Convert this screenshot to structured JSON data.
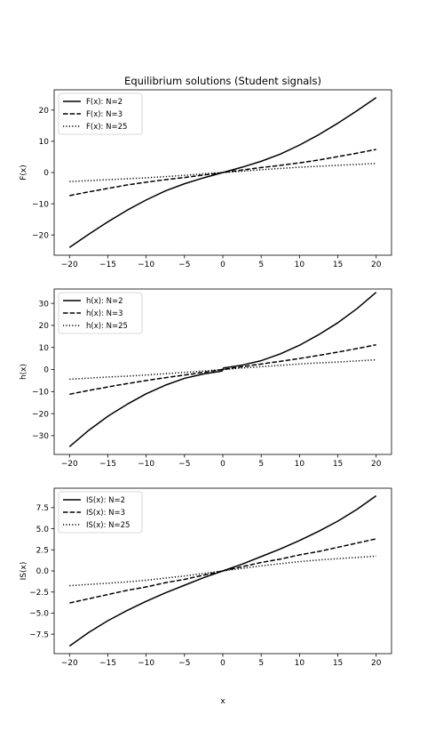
{
  "figure": {
    "title": "Equilibrium solutions (Student signals)",
    "xlabel": "x"
  },
  "chart_data": [
    {
      "type": "line",
      "title": "Equilibrium solutions (Student signals)",
      "xlabel": "",
      "ylabel": "F(x)",
      "xlim": [
        -22,
        22
      ],
      "ylim": [
        -26.5,
        26.5
      ],
      "xticks": [
        -20,
        -15,
        -10,
        -5,
        0,
        5,
        10,
        15,
        20
      ],
      "xtick_labels": [
        "−20",
        "−15",
        "−10",
        "−5",
        "0",
        "5",
        "10",
        "15",
        "20"
      ],
      "yticks": [
        -20,
        -10,
        0,
        10,
        20
      ],
      "ytick_labels": [
        "−20",
        "−10",
        "0",
        "10",
        "20"
      ],
      "legend_position": "upper-left",
      "grid": false,
      "x": [
        -20,
        -17.5,
        -15,
        -12.5,
        -10,
        -7.5,
        -5,
        -2.5,
        0,
        2.5,
        5,
        7.5,
        10,
        12.5,
        15,
        17.5,
        20
      ],
      "series": [
        {
          "name": "F(x): N=2",
          "linestyle": "solid",
          "y": [
            -24,
            -19.8,
            -15.8,
            -12.1,
            -8.8,
            -5.9,
            -3.6,
            -1.7,
            0,
            1.7,
            3.6,
            5.9,
            8.8,
            12.1,
            15.8,
            19.8,
            24
          ]
        },
        {
          "name": "F(x): N=3",
          "linestyle": "dashed",
          "y": [
            -7.4,
            -6.2,
            -5.1,
            -4.0,
            -3.1,
            -2.3,
            -1.6,
            -0.8,
            0,
            0.8,
            1.6,
            2.3,
            3.1,
            4.0,
            5.1,
            6.2,
            7.4
          ]
        },
        {
          "name": "F(x): N=25",
          "linestyle": "dotted",
          "y": [
            -2.9,
            -2.6,
            -2.3,
            -2.0,
            -1.7,
            -1.3,
            -0.9,
            -0.4,
            0,
            0.4,
            0.9,
            1.3,
            1.7,
            2.0,
            2.3,
            2.6,
            2.9
          ]
        }
      ]
    },
    {
      "type": "line",
      "title": "",
      "xlabel": "",
      "ylabel": "h(x)",
      "xlim": [
        -22,
        22
      ],
      "ylim": [
        -38.5,
        36.5
      ],
      "xticks": [
        -20,
        -15,
        -10,
        -5,
        0,
        5,
        10,
        15,
        20
      ],
      "xtick_labels": [
        "−20",
        "−15",
        "−10",
        "−5",
        "0",
        "5",
        "10",
        "15",
        "20"
      ],
      "yticks": [
        -30,
        -20,
        -10,
        0,
        10,
        20,
        30
      ],
      "ytick_labels": [
        "−30",
        "−20",
        "−10",
        "0",
        "10",
        "20",
        "30"
      ],
      "legend_position": "upper-left",
      "grid": false,
      "x": [
        -20,
        -17.5,
        -15,
        -12.5,
        -10,
        -7.5,
        -5,
        -2.5,
        -0.1,
        0.1,
        2.5,
        5,
        7.5,
        10,
        12.5,
        15,
        17.5,
        20
      ],
      "series": [
        {
          "name": "h(x): N=2",
          "linestyle": "solid",
          "y": [
            -35,
            -27.6,
            -21.2,
            -15.8,
            -11.0,
            -7.1,
            -4.0,
            -2.0,
            -0.7,
            0.7,
            2.0,
            4.0,
            7.1,
            11.0,
            15.8,
            21.2,
            27.6,
            35
          ]
        },
        {
          "name": "h(x): N=3",
          "linestyle": "dashed",
          "y": [
            -11.2,
            -9.5,
            -7.9,
            -6.4,
            -5.0,
            -3.7,
            -2.5,
            -1.3,
            0,
            0,
            1.3,
            2.5,
            3.7,
            5.0,
            6.4,
            7.9,
            9.5,
            11.2
          ]
        },
        {
          "name": "h(x): N=25",
          "linestyle": "dotted",
          "y": [
            -4.4,
            -3.9,
            -3.4,
            -3.0,
            -2.5,
            -1.9,
            -1.3,
            -0.7,
            0,
            0,
            0.7,
            1.3,
            1.9,
            2.5,
            3.0,
            3.4,
            3.9,
            4.4
          ]
        }
      ]
    },
    {
      "type": "line",
      "title": "",
      "xlabel": "x",
      "ylabel": "IS(x)",
      "xlim": [
        -22,
        22
      ],
      "ylim": [
        -9.8,
        9.8
      ],
      "xticks": [
        -20,
        -15,
        -10,
        -5,
        0,
        5,
        10,
        15,
        20
      ],
      "xtick_labels": [
        "−20",
        "−15",
        "−10",
        "−5",
        "0",
        "5",
        "10",
        "15",
        "20"
      ],
      "yticks": [
        -7.5,
        -5,
        -2.5,
        0,
        2.5,
        5,
        7.5
      ],
      "ytick_labels": [
        "−7.5",
        "−5.0",
        "−2.5",
        "0.0",
        "2.5",
        "5.0",
        "7.5"
      ],
      "legend_position": "upper-left",
      "grid": false,
      "x": [
        -20,
        -17.5,
        -15,
        -12.5,
        -10,
        -7.5,
        -5,
        -2.5,
        0,
        2.5,
        5,
        7.5,
        10,
        12.5,
        15,
        17.5,
        20
      ],
      "series": [
        {
          "name": "IS(x): N=2",
          "linestyle": "solid",
          "y": [
            -8.9,
            -7.3,
            -5.9,
            -4.7,
            -3.6,
            -2.6,
            -1.7,
            -0.8,
            0,
            0.8,
            1.7,
            2.6,
            3.6,
            4.7,
            5.9,
            7.3,
            8.9
          ]
        },
        {
          "name": "IS(x): N=3",
          "linestyle": "dashed",
          "y": [
            -3.8,
            -3.3,
            -2.8,
            -2.3,
            -1.9,
            -1.4,
            -1.0,
            -0.5,
            0,
            0.5,
            1.0,
            1.4,
            1.9,
            2.3,
            2.8,
            3.3,
            3.8
          ]
        },
        {
          "name": "IS(x): N=25",
          "linestyle": "dotted",
          "y": [
            -1.75,
            -1.6,
            -1.45,
            -1.3,
            -1.1,
            -0.85,
            -0.6,
            -0.3,
            0,
            0.3,
            0.6,
            0.85,
            1.1,
            1.3,
            1.45,
            1.6,
            1.75
          ]
        }
      ]
    }
  ]
}
